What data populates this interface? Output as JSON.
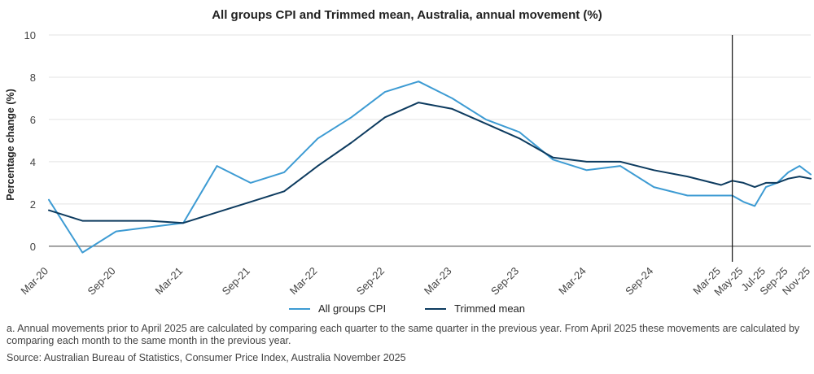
{
  "chart_data": {
    "type": "line",
    "title": "All groups CPI and Trimmed mean, Australia, annual movement (%)",
    "ylabel": "Percentage change (%)",
    "xlabel": "",
    "ylim": [
      -0.7,
      10
    ],
    "yticks": [
      0,
      2,
      4,
      6,
      8,
      10
    ],
    "grid": "horizontal",
    "legend_position": "bottom",
    "x_tick_labels": [
      "Mar-20",
      "Sep-20",
      "Mar-21",
      "Sep-21",
      "Mar-22",
      "Sep-22",
      "Mar-23",
      "Sep-23",
      "Mar-24",
      "Sep-24",
      "Mar-25",
      "May-25",
      "Jul-25",
      "Sep-25",
      "Nov-25"
    ],
    "vertical_marker_at": "Apr-25",
    "series": [
      {
        "name": "All groups CPI",
        "color": "#3d9bd3",
        "points": [
          {
            "x": "Mar-20",
            "y": 2.2
          },
          {
            "x": "Jun-20",
            "y": -0.3
          },
          {
            "x": "Sep-20",
            "y": 0.7
          },
          {
            "x": "Dec-20",
            "y": 0.9
          },
          {
            "x": "Mar-21",
            "y": 1.1
          },
          {
            "x": "Jun-21",
            "y": 3.8
          },
          {
            "x": "Sep-21",
            "y": 3.0
          },
          {
            "x": "Dec-21",
            "y": 3.5
          },
          {
            "x": "Mar-22",
            "y": 5.1
          },
          {
            "x": "Jun-22",
            "y": 6.1
          },
          {
            "x": "Sep-22",
            "y": 7.3
          },
          {
            "x": "Dec-22",
            "y": 7.8
          },
          {
            "x": "Mar-23",
            "y": 7.0
          },
          {
            "x": "Jun-23",
            "y": 6.0
          },
          {
            "x": "Sep-23",
            "y": 5.4
          },
          {
            "x": "Dec-23",
            "y": 4.1
          },
          {
            "x": "Mar-24",
            "y": 3.6
          },
          {
            "x": "Jun-24",
            "y": 3.8
          },
          {
            "x": "Sep-24",
            "y": 2.8
          },
          {
            "x": "Dec-24",
            "y": 2.4
          },
          {
            "x": "Mar-25",
            "y": 2.4
          },
          {
            "x": "Apr-25",
            "y": 2.4
          },
          {
            "x": "May-25",
            "y": 2.1
          },
          {
            "x": "Jun-25",
            "y": 1.9
          },
          {
            "x": "Jul-25",
            "y": 2.8
          },
          {
            "x": "Aug-25",
            "y": 3.0
          },
          {
            "x": "Sep-25",
            "y": 3.5
          },
          {
            "x": "Oct-25",
            "y": 3.8
          },
          {
            "x": "Nov-25",
            "y": 3.4
          }
        ]
      },
      {
        "name": "Trimmed mean",
        "color": "#0d3b5f",
        "points": [
          {
            "x": "Mar-20",
            "y": 1.7
          },
          {
            "x": "Jun-20",
            "y": 1.2
          },
          {
            "x": "Sep-20",
            "y": 1.2
          },
          {
            "x": "Dec-20",
            "y": 1.2
          },
          {
            "x": "Mar-21",
            "y": 1.1
          },
          {
            "x": "Jun-21",
            "y": 1.6
          },
          {
            "x": "Sep-21",
            "y": 2.1
          },
          {
            "x": "Dec-21",
            "y": 2.6
          },
          {
            "x": "Mar-22",
            "y": 3.8
          },
          {
            "x": "Jun-22",
            "y": 4.9
          },
          {
            "x": "Sep-22",
            "y": 6.1
          },
          {
            "x": "Dec-22",
            "y": 6.8
          },
          {
            "x": "Mar-23",
            "y": 6.5
          },
          {
            "x": "Jun-23",
            "y": 5.8
          },
          {
            "x": "Sep-23",
            "y": 5.1
          },
          {
            "x": "Dec-23",
            "y": 4.2
          },
          {
            "x": "Mar-24",
            "y": 4.0
          },
          {
            "x": "Jun-24",
            "y": 4.0
          },
          {
            "x": "Sep-24",
            "y": 3.6
          },
          {
            "x": "Dec-24",
            "y": 3.3
          },
          {
            "x": "Mar-25",
            "y": 2.9
          },
          {
            "x": "Apr-25",
            "y": 3.1
          },
          {
            "x": "May-25",
            "y": 3.0
          },
          {
            "x": "Jun-25",
            "y": 2.8
          },
          {
            "x": "Jul-25",
            "y": 3.0
          },
          {
            "x": "Aug-25",
            "y": 3.0
          },
          {
            "x": "Sep-25",
            "y": 3.2
          },
          {
            "x": "Oct-25",
            "y": 3.3
          },
          {
            "x": "Nov-25",
            "y": 3.2
          }
        ]
      }
    ]
  },
  "legend": {
    "cpi_label": "All groups CPI",
    "trimmed_label": "Trimmed mean"
  },
  "footnote": "a. Annual movements prior to April 2025 are calculated by comparing each quarter to the same quarter in the previous year.  From April 2025 these movements are calculated by comparing each month to the same month in the previous year.",
  "source": "Source: Australian Bureau of Statistics, Consumer Price Index, Australia November 2025"
}
